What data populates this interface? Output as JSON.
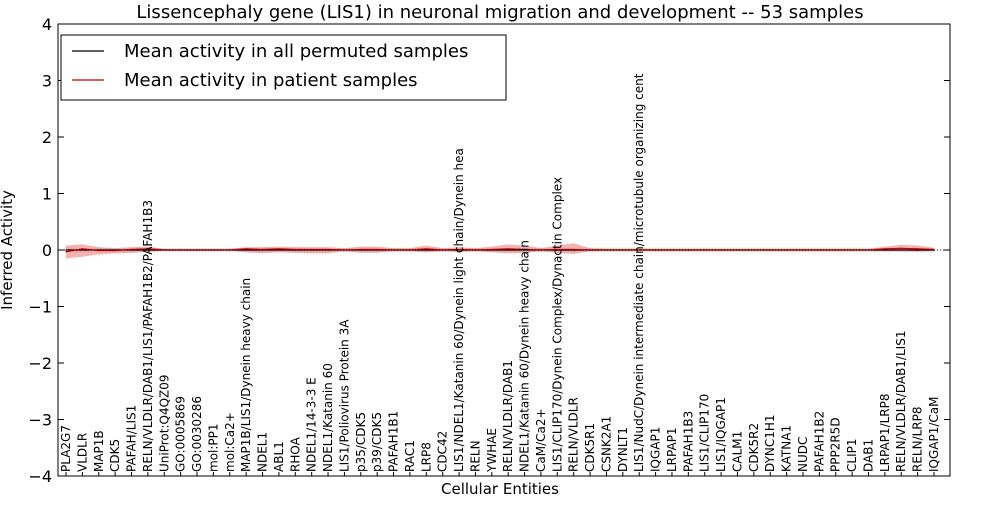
{
  "chart_data": {
    "type": "line",
    "title": "Lissencephaly gene (LIS1) in neuronal migration and development -- 53 samples",
    "xlabel": "Cellular Entities",
    "ylabel": "Inferred Activity",
    "ylim": [
      -4,
      4
    ],
    "yticks": [
      -4,
      -3,
      -2,
      -1,
      0,
      1,
      2,
      3,
      4
    ],
    "ytick_labels": [
      "−4",
      "−3",
      "−2",
      "−1",
      "0",
      "1",
      "2",
      "3",
      "4"
    ],
    "legend_position": "top-left",
    "legend": [
      "Mean activity in all permuted samples",
      "Mean activity in patient samples"
    ],
    "colors": {
      "permuted": "#000000",
      "patient": "#cc0000",
      "patient_band": "#f08080",
      "permuted_band": "#aaaaaa"
    },
    "categories": [
      "PLA2G7",
      "VLDLR",
      "MAP1B",
      "CDK5",
      "PAFAH/LIS1",
      "RELN/VLDLR/DAB1/LIS1/PAFAH1B2/PAFAH1B3",
      "UniProt:Q4QZ09",
      "GO:0005869",
      "GO:0030286",
      "mol:PP1",
      "mol:Ca2+",
      "MAP1B/LIS1/Dynein heavy chain",
      "NDEL1",
      "ABL1",
      "RHOA",
      "NDEL1/14-3-3 E",
      "NDEL1/Katanin 60",
      "LIS1/Poliovirus Protein 3A",
      "p35/CDK5",
      "p39/CDK5",
      "PAFAH1B1",
      "RAC1",
      "LRP8",
      "CDC42",
      "LIS1/NDEL1/Katanin 60/Dynein light chain/Dynein hea",
      "RELN",
      "YWHAE",
      "RELN/VLDLR/DAB1",
      "NDEL1/Katanin 60/Dynein heavy chain",
      "CaM/Ca2+",
      "LIS1/CLIP170/Dynein Complex/Dynactin Complex",
      "RELN/VLDLR",
      "CDK5R1",
      "CSNK2A1",
      "DYNLT1",
      "LIS1/NudC/Dynein intermediate chain/microtubule organizing cent",
      "IQGAP1",
      "LRPAP1",
      "PAFAH1B3",
      "LIS1/CLIP170",
      "LIS1/IQGAP1",
      "CALM1",
      "CDK5R2",
      "DYNC1H1",
      "KATNA1",
      "NUDC",
      "PAFAH1B2",
      "PPP2R5D",
      "CLIP1",
      "DAB1",
      "LRPAP1/LRP8",
      "RELN/VLDLR/DAB1/LIS1",
      "RELN/LRP8",
      "IQGAP1/CaM"
    ],
    "series": [
      {
        "name": "Mean activity in all permuted samples",
        "values": [
          0.0,
          0.0,
          0.0,
          0.0,
          0.0,
          0.0,
          0.0,
          0.0,
          0.0,
          0.0,
          0.0,
          0.0,
          0.0,
          0.0,
          0.0,
          0.0,
          0.0,
          0.0,
          0.0,
          0.0,
          0.0,
          0.0,
          0.0,
          0.0,
          0.0,
          0.0,
          0.0,
          0.0,
          0.0,
          0.0,
          0.0,
          0.0,
          0.0,
          0.0,
          0.0,
          0.0,
          0.0,
          0.0,
          0.0,
          0.0,
          0.0,
          0.0,
          0.0,
          0.0,
          0.0,
          0.0,
          0.0,
          0.0,
          0.0,
          0.0,
          0.0,
          0.0,
          0.0,
          0.0
        ],
        "band_lower": [
          -0.05,
          -0.04,
          -0.04,
          -0.04,
          -0.04,
          -0.04,
          -0.03,
          -0.03,
          -0.03,
          -0.03,
          -0.03,
          -0.04,
          -0.04,
          -0.04,
          -0.04,
          -0.04,
          -0.04,
          -0.04,
          -0.04,
          -0.04,
          -0.04,
          -0.04,
          -0.04,
          -0.04,
          -0.04,
          -0.04,
          -0.04,
          -0.04,
          -0.04,
          -0.04,
          -0.04,
          -0.04,
          -0.04,
          -0.04,
          -0.04,
          -0.04,
          -0.04,
          -0.04,
          -0.04,
          -0.04,
          -0.04,
          -0.04,
          -0.04,
          -0.04,
          -0.04,
          -0.04,
          -0.04,
          -0.04,
          -0.04,
          -0.04,
          -0.04,
          -0.04,
          -0.04,
          -0.04
        ],
        "band_upper": [
          0.05,
          0.04,
          0.04,
          0.04,
          0.04,
          0.04,
          0.03,
          0.03,
          0.03,
          0.03,
          0.03,
          0.04,
          0.04,
          0.04,
          0.04,
          0.04,
          0.04,
          0.04,
          0.04,
          0.04,
          0.04,
          0.04,
          0.04,
          0.04,
          0.04,
          0.04,
          0.04,
          0.04,
          0.04,
          0.04,
          0.04,
          0.04,
          0.04,
          0.04,
          0.04,
          0.04,
          0.04,
          0.04,
          0.04,
          0.04,
          0.04,
          0.04,
          0.04,
          0.04,
          0.04,
          0.04,
          0.04,
          0.04,
          0.04,
          0.04,
          0.04,
          0.04,
          0.04,
          0.04
        ]
      },
      {
        "name": "Mean activity in patient samples",
        "values": [
          -0.03,
          0.02,
          -0.01,
          -0.01,
          0.01,
          0.02,
          0.0,
          0.0,
          0.0,
          0.0,
          0.0,
          0.02,
          0.01,
          0.02,
          0.01,
          0.01,
          0.01,
          0.0,
          0.01,
          0.01,
          0.0,
          0.0,
          0.02,
          0.0,
          0.01,
          0.0,
          0.01,
          0.02,
          0.01,
          0.0,
          0.01,
          0.01,
          0.0,
          0.0,
          0.0,
          0.0,
          0.0,
          0.0,
          0.0,
          0.0,
          0.0,
          0.0,
          0.0,
          0.0,
          0.0,
          0.0,
          0.0,
          0.0,
          0.0,
          0.0,
          0.02,
          0.03,
          0.02,
          0.01
        ],
        "band_lower": [
          -0.15,
          -0.12,
          -0.08,
          -0.06,
          -0.05,
          -0.03,
          -0.01,
          -0.01,
          -0.01,
          -0.01,
          -0.01,
          -0.04,
          -0.06,
          -0.04,
          -0.05,
          -0.06,
          -0.06,
          -0.02,
          -0.05,
          -0.05,
          -0.02,
          -0.02,
          -0.04,
          -0.02,
          -0.03,
          -0.02,
          -0.04,
          -0.06,
          -0.05,
          -0.02,
          -0.05,
          -0.07,
          -0.02,
          -0.01,
          -0.01,
          -0.01,
          -0.01,
          -0.01,
          -0.01,
          -0.01,
          -0.01,
          -0.01,
          -0.01,
          -0.01,
          -0.01,
          -0.01,
          -0.01,
          -0.01,
          -0.01,
          -0.01,
          -0.02,
          -0.02,
          -0.03,
          -0.01
        ],
        "band_upper": [
          0.08,
          0.1,
          0.05,
          0.03,
          0.05,
          0.06,
          0.02,
          0.02,
          0.02,
          0.02,
          0.02,
          0.05,
          0.05,
          0.06,
          0.05,
          0.05,
          0.05,
          0.03,
          0.06,
          0.06,
          0.03,
          0.03,
          0.08,
          0.03,
          0.05,
          0.03,
          0.06,
          0.1,
          0.08,
          0.03,
          0.08,
          0.12,
          0.03,
          0.02,
          0.02,
          0.02,
          0.02,
          0.02,
          0.02,
          0.02,
          0.02,
          0.02,
          0.02,
          0.02,
          0.02,
          0.02,
          0.02,
          0.02,
          0.02,
          0.02,
          0.06,
          0.09,
          0.08,
          0.04
        ]
      }
    ]
  }
}
